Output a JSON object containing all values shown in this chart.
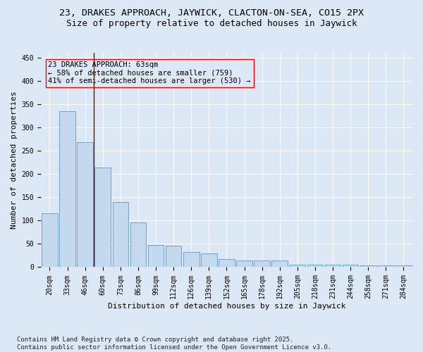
{
  "title": "23, DRAKES APPROACH, JAYWICK, CLACTON-ON-SEA, CO15 2PX",
  "subtitle": "Size of property relative to detached houses in Jaywick",
  "xlabel": "Distribution of detached houses by size in Jaywick",
  "ylabel": "Number of detached properties",
  "bar_color": "#c5d9ee",
  "bar_edge_color": "#6699bb",
  "bg_color": "#dce8f5",
  "grid_color": "#ffffff",
  "categories": [
    "20sqm",
    "33sqm",
    "46sqm",
    "60sqm",
    "73sqm",
    "86sqm",
    "99sqm",
    "112sqm",
    "126sqm",
    "139sqm",
    "152sqm",
    "165sqm",
    "178sqm",
    "192sqm",
    "205sqm",
    "218sqm",
    "231sqm",
    "244sqm",
    "258sqm",
    "271sqm",
    "284sqm"
  ],
  "values": [
    115,
    335,
    268,
    213,
    140,
    96,
    47,
    46,
    32,
    30,
    17,
    14,
    14,
    14,
    5,
    5,
    5,
    5,
    4,
    4,
    4
  ],
  "ylim": [
    0,
    460
  ],
  "yticks": [
    0,
    50,
    100,
    150,
    200,
    250,
    300,
    350,
    400,
    450
  ],
  "annotation_text": "23 DRAKES APPROACH: 63sqm\n← 58% of detached houses are smaller (759)\n41% of semi-detached houses are larger (530) →",
  "footer_text": "Contains HM Land Registry data © Crown copyright and database right 2025.\nContains public sector information licensed under the Open Government Licence v3.0.",
  "title_fontsize": 9.5,
  "subtitle_fontsize": 9,
  "axis_label_fontsize": 8,
  "tick_fontsize": 7,
  "annotation_fontsize": 7.5,
  "footer_fontsize": 6.5
}
